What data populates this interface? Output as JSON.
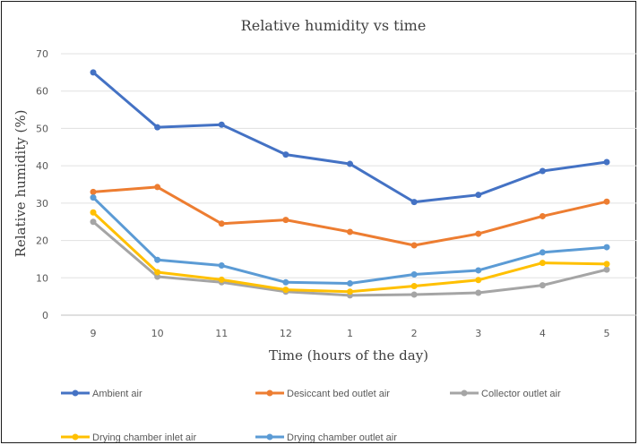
{
  "chart_data": {
    "type": "line",
    "title": "Relative humidity vs time",
    "xlabel": "Time (hours of the day)",
    "ylabel": "Relative humidity (%)",
    "categories": [
      "9",
      "10",
      "11",
      "12",
      "1",
      "2",
      "3",
      "4",
      "5"
    ],
    "ylim": [
      0,
      70
    ],
    "yticks": [
      0,
      10,
      20,
      30,
      40,
      50,
      60,
      70
    ],
    "grid": true,
    "legend_position": "bottom",
    "series": [
      {
        "name": "Ambient air",
        "color": "#4472C4",
        "values": [
          65,
          50.3,
          51,
          43,
          40.5,
          30.3,
          32.2,
          38.6,
          41
        ]
      },
      {
        "name": "Desiccant bed outlet air",
        "color": "#ED7D31",
        "values": [
          33,
          34.3,
          24.5,
          25.5,
          22.3,
          18.7,
          21.8,
          26.5,
          30.4
        ]
      },
      {
        "name": "Collector outlet air",
        "color": "#A5A5A5",
        "values": [
          25,
          10.3,
          8.8,
          6.3,
          5.3,
          5.5,
          6,
          8,
          12.2
        ]
      },
      {
        "name": "Drying chamber inlet air",
        "color": "#FFC000",
        "values": [
          27.5,
          11.5,
          9.5,
          6.8,
          6.3,
          7.8,
          9.4,
          14,
          13.7
        ]
      },
      {
        "name": "Drying chamber outlet air",
        "color": "#5B9BD5",
        "values": [
          31.5,
          14.8,
          13.3,
          8.8,
          8.5,
          10.9,
          12,
          16.8,
          18.2
        ]
      }
    ]
  }
}
